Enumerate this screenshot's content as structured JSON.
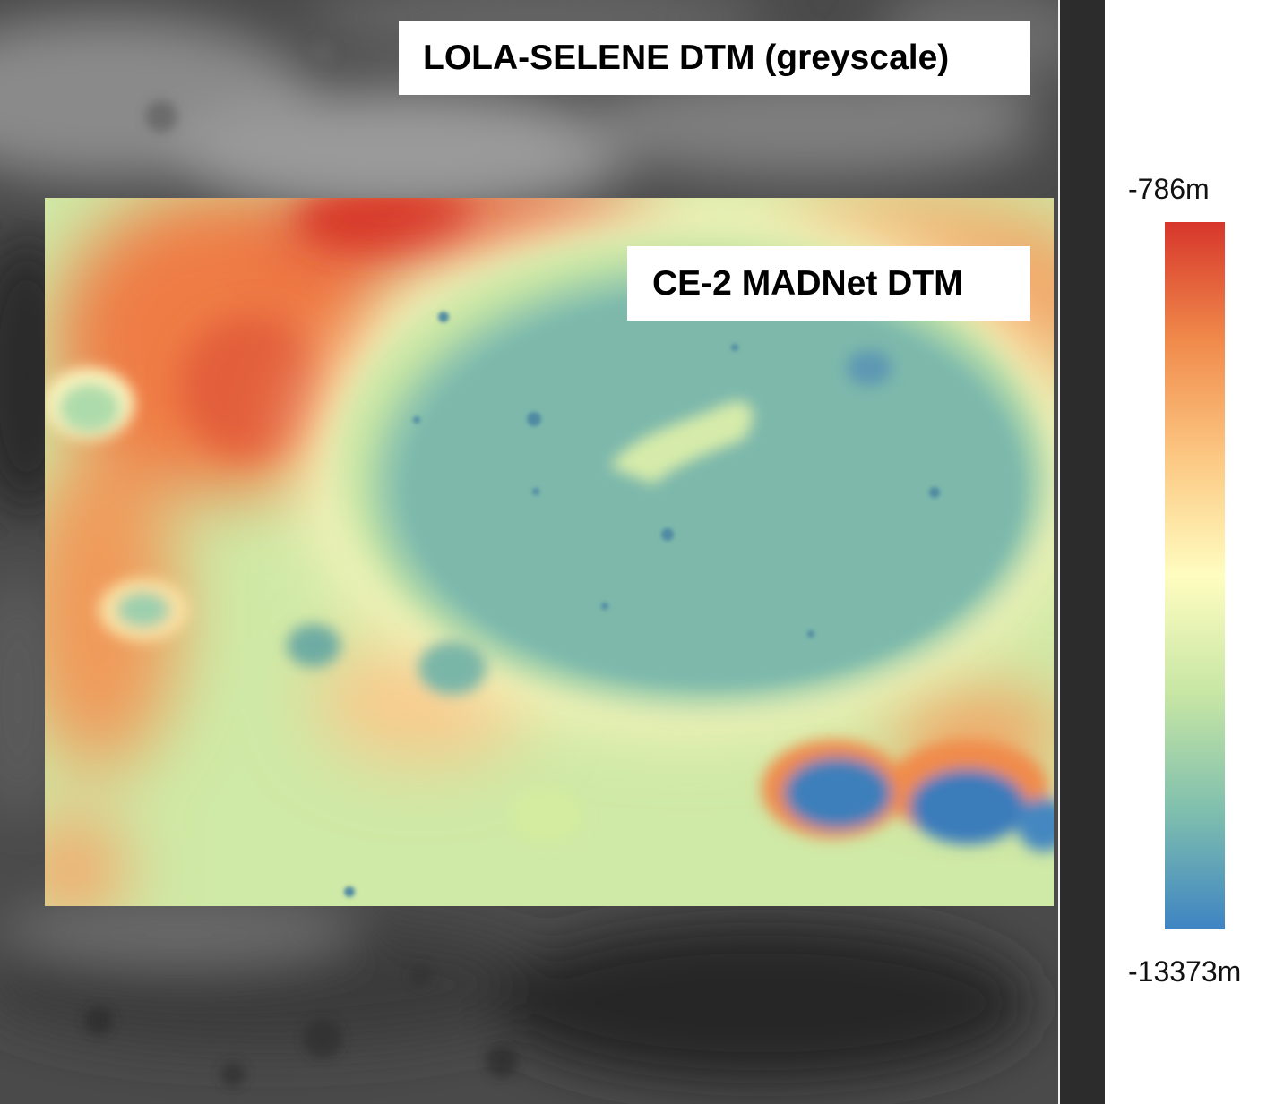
{
  "figure": {
    "background_label": "LOLA-SELENE DTM (greyscale)",
    "inset_label": "CE-2 MADNet DTM"
  },
  "legend": {
    "max_label": "-786m",
    "min_label": "-13373m",
    "colors": [
      "#d7362b",
      "#f08a4b",
      "#fcc883",
      "#fffdc0",
      "#c7e6a4",
      "#7fbfae",
      "#3e84c3"
    ]
  }
}
